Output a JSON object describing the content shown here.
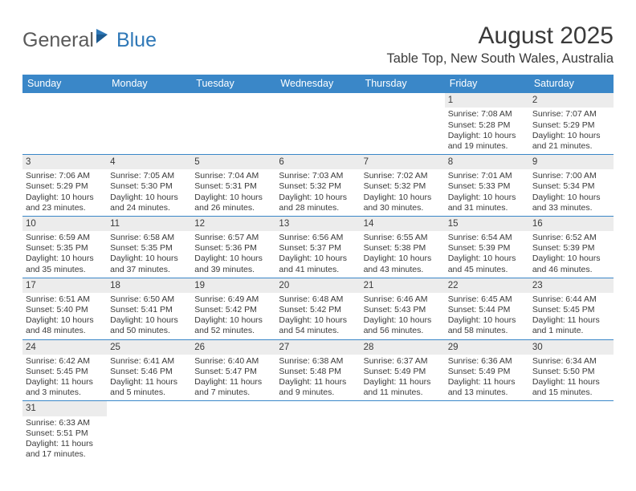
{
  "logo": {
    "text1": "General",
    "text2": "Blue"
  },
  "title": "August 2025",
  "location": "Table Top, New South Wales, Australia",
  "colors": {
    "header_bg": "#3a87c8",
    "header_fg": "#ffffff",
    "daynum_bg": "#ececec",
    "text": "#3a3a3a",
    "rule": "#3a87c8",
    "logo_gray": "#5a5a5a",
    "logo_blue": "#2f78b7",
    "page_bg": "#ffffff"
  },
  "typography": {
    "title_fontsize": 30,
    "location_fontsize": 16.5,
    "weekday_fontsize": 12.5,
    "daynum_fontsize": 11.5,
    "body_fontsize": 10.5,
    "logo_fontsize": 25
  },
  "weekdays": [
    "Sunday",
    "Monday",
    "Tuesday",
    "Wednesday",
    "Thursday",
    "Friday",
    "Saturday"
  ],
  "weeks": [
    [
      null,
      null,
      null,
      null,
      null,
      {
        "n": "1",
        "sr": "Sunrise: 7:08 AM",
        "ss": "Sunset: 5:28 PM",
        "d1": "Daylight: 10 hours",
        "d2": "and 19 minutes."
      },
      {
        "n": "2",
        "sr": "Sunrise: 7:07 AM",
        "ss": "Sunset: 5:29 PM",
        "d1": "Daylight: 10 hours",
        "d2": "and 21 minutes."
      }
    ],
    [
      {
        "n": "3",
        "sr": "Sunrise: 7:06 AM",
        "ss": "Sunset: 5:29 PM",
        "d1": "Daylight: 10 hours",
        "d2": "and 23 minutes."
      },
      {
        "n": "4",
        "sr": "Sunrise: 7:05 AM",
        "ss": "Sunset: 5:30 PM",
        "d1": "Daylight: 10 hours",
        "d2": "and 24 minutes."
      },
      {
        "n": "5",
        "sr": "Sunrise: 7:04 AM",
        "ss": "Sunset: 5:31 PM",
        "d1": "Daylight: 10 hours",
        "d2": "and 26 minutes."
      },
      {
        "n": "6",
        "sr": "Sunrise: 7:03 AM",
        "ss": "Sunset: 5:32 PM",
        "d1": "Daylight: 10 hours",
        "d2": "and 28 minutes."
      },
      {
        "n": "7",
        "sr": "Sunrise: 7:02 AM",
        "ss": "Sunset: 5:32 PM",
        "d1": "Daylight: 10 hours",
        "d2": "and 30 minutes."
      },
      {
        "n": "8",
        "sr": "Sunrise: 7:01 AM",
        "ss": "Sunset: 5:33 PM",
        "d1": "Daylight: 10 hours",
        "d2": "and 31 minutes."
      },
      {
        "n": "9",
        "sr": "Sunrise: 7:00 AM",
        "ss": "Sunset: 5:34 PM",
        "d1": "Daylight: 10 hours",
        "d2": "and 33 minutes."
      }
    ],
    [
      {
        "n": "10",
        "sr": "Sunrise: 6:59 AM",
        "ss": "Sunset: 5:35 PM",
        "d1": "Daylight: 10 hours",
        "d2": "and 35 minutes."
      },
      {
        "n": "11",
        "sr": "Sunrise: 6:58 AM",
        "ss": "Sunset: 5:35 PM",
        "d1": "Daylight: 10 hours",
        "d2": "and 37 minutes."
      },
      {
        "n": "12",
        "sr": "Sunrise: 6:57 AM",
        "ss": "Sunset: 5:36 PM",
        "d1": "Daylight: 10 hours",
        "d2": "and 39 minutes."
      },
      {
        "n": "13",
        "sr": "Sunrise: 6:56 AM",
        "ss": "Sunset: 5:37 PM",
        "d1": "Daylight: 10 hours",
        "d2": "and 41 minutes."
      },
      {
        "n": "14",
        "sr": "Sunrise: 6:55 AM",
        "ss": "Sunset: 5:38 PM",
        "d1": "Daylight: 10 hours",
        "d2": "and 43 minutes."
      },
      {
        "n": "15",
        "sr": "Sunrise: 6:54 AM",
        "ss": "Sunset: 5:39 PM",
        "d1": "Daylight: 10 hours",
        "d2": "and 45 minutes."
      },
      {
        "n": "16",
        "sr": "Sunrise: 6:52 AM",
        "ss": "Sunset: 5:39 PM",
        "d1": "Daylight: 10 hours",
        "d2": "and 46 minutes."
      }
    ],
    [
      {
        "n": "17",
        "sr": "Sunrise: 6:51 AM",
        "ss": "Sunset: 5:40 PM",
        "d1": "Daylight: 10 hours",
        "d2": "and 48 minutes."
      },
      {
        "n": "18",
        "sr": "Sunrise: 6:50 AM",
        "ss": "Sunset: 5:41 PM",
        "d1": "Daylight: 10 hours",
        "d2": "and 50 minutes."
      },
      {
        "n": "19",
        "sr": "Sunrise: 6:49 AM",
        "ss": "Sunset: 5:42 PM",
        "d1": "Daylight: 10 hours",
        "d2": "and 52 minutes."
      },
      {
        "n": "20",
        "sr": "Sunrise: 6:48 AM",
        "ss": "Sunset: 5:42 PM",
        "d1": "Daylight: 10 hours",
        "d2": "and 54 minutes."
      },
      {
        "n": "21",
        "sr": "Sunrise: 6:46 AM",
        "ss": "Sunset: 5:43 PM",
        "d1": "Daylight: 10 hours",
        "d2": "and 56 minutes."
      },
      {
        "n": "22",
        "sr": "Sunrise: 6:45 AM",
        "ss": "Sunset: 5:44 PM",
        "d1": "Daylight: 10 hours",
        "d2": "and 58 minutes."
      },
      {
        "n": "23",
        "sr": "Sunrise: 6:44 AM",
        "ss": "Sunset: 5:45 PM",
        "d1": "Daylight: 11 hours",
        "d2": "and 1 minute."
      }
    ],
    [
      {
        "n": "24",
        "sr": "Sunrise: 6:42 AM",
        "ss": "Sunset: 5:45 PM",
        "d1": "Daylight: 11 hours",
        "d2": "and 3 minutes."
      },
      {
        "n": "25",
        "sr": "Sunrise: 6:41 AM",
        "ss": "Sunset: 5:46 PM",
        "d1": "Daylight: 11 hours",
        "d2": "and 5 minutes."
      },
      {
        "n": "26",
        "sr": "Sunrise: 6:40 AM",
        "ss": "Sunset: 5:47 PM",
        "d1": "Daylight: 11 hours",
        "d2": "and 7 minutes."
      },
      {
        "n": "27",
        "sr": "Sunrise: 6:38 AM",
        "ss": "Sunset: 5:48 PM",
        "d1": "Daylight: 11 hours",
        "d2": "and 9 minutes."
      },
      {
        "n": "28",
        "sr": "Sunrise: 6:37 AM",
        "ss": "Sunset: 5:49 PM",
        "d1": "Daylight: 11 hours",
        "d2": "and 11 minutes."
      },
      {
        "n": "29",
        "sr": "Sunrise: 6:36 AM",
        "ss": "Sunset: 5:49 PM",
        "d1": "Daylight: 11 hours",
        "d2": "and 13 minutes."
      },
      {
        "n": "30",
        "sr": "Sunrise: 6:34 AM",
        "ss": "Sunset: 5:50 PM",
        "d1": "Daylight: 11 hours",
        "d2": "and 15 minutes."
      }
    ],
    [
      {
        "n": "31",
        "sr": "Sunrise: 6:33 AM",
        "ss": "Sunset: 5:51 PM",
        "d1": "Daylight: 11 hours",
        "d2": "and 17 minutes."
      },
      null,
      null,
      null,
      null,
      null,
      null
    ]
  ]
}
